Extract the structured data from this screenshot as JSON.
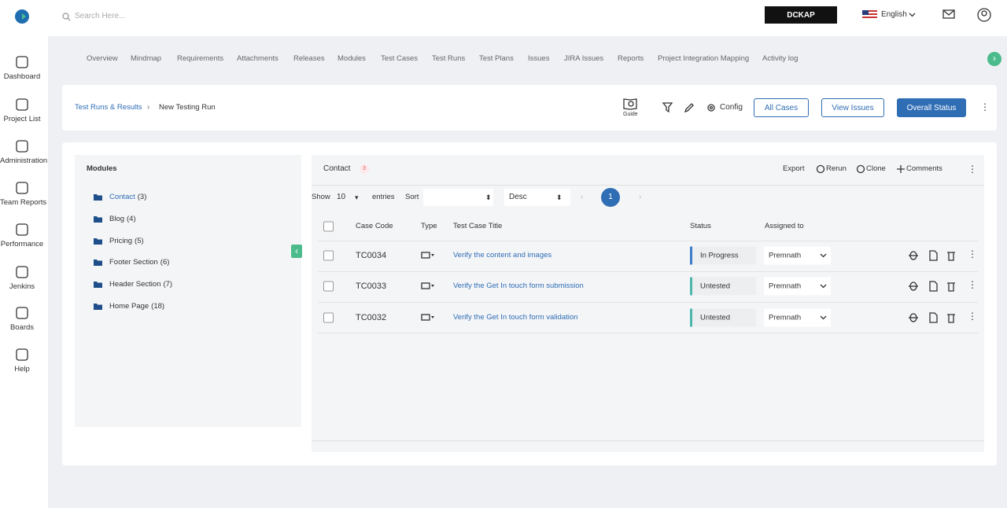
{
  "header": {
    "search_placeholder": "Search Here...",
    "brand": "DCKAP",
    "language": "English"
  },
  "sidebar": [
    "Dashboard",
    "Project List",
    "Administration",
    "Team Reports",
    "Performance",
    "Jenkins",
    "Boards",
    "Help"
  ],
  "tabs": [
    "Overview",
    "Mindmap",
    "Requirements",
    "Attachments",
    "Releases",
    "Modules",
    "Test Cases",
    "Test Runs",
    "Test Plans",
    "Issues",
    "JIRA Issues",
    "Reports",
    "Project Integration Mapping",
    "Activity log"
  ],
  "breadcrumb": [
    "Test Runs & Results",
    "New Testing Run"
  ],
  "toolbar": {
    "guide": "Guide",
    "config": "Config",
    "buttons": [
      "All Cases",
      "View Issues",
      "Overall Status"
    ]
  },
  "modules": {
    "title": "Modules",
    "items": [
      {
        "name": "Contact",
        "count": "(3)"
      },
      {
        "name": "Blog",
        "count": "(4)"
      },
      {
        "name": "Pricing",
        "count": "(5)"
      },
      {
        "name": "Footer Section",
        "count": "(6)"
      },
      {
        "name": "Header Section",
        "count": "(7)"
      },
      {
        "name": "Home Page",
        "count": "(18)"
      }
    ]
  },
  "panel": {
    "title": "Contact",
    "count": 3,
    "actions": [
      "Export",
      "Rerun",
      "Clone",
      "Comments"
    ]
  },
  "controls": {
    "show": "Show",
    "entries_value": 10,
    "entries": "entries",
    "sort": "Sort",
    "order": "Desc",
    "page": 1
  },
  "table": {
    "columns": [
      "Case Code",
      "Type",
      "Test Case Title",
      "Status",
      "Assigned to"
    ],
    "rows": [
      {
        "code": "TC0034",
        "title": "Verify the content and images",
        "status": "In Progress",
        "status_color": "#3d7cc9",
        "assignee": "Premnath"
      },
      {
        "code": "TC0033",
        "title": "Verify the Get In touch form submission",
        "status": "Untested",
        "status_color": "#4db6ac",
        "assignee": "Premnath"
      },
      {
        "code": "TC0032",
        "title": "Verify the Get In touch form validation",
        "status": "Untested",
        "status_color": "#4db6ac",
        "assignee": "Premnath"
      }
    ]
  }
}
